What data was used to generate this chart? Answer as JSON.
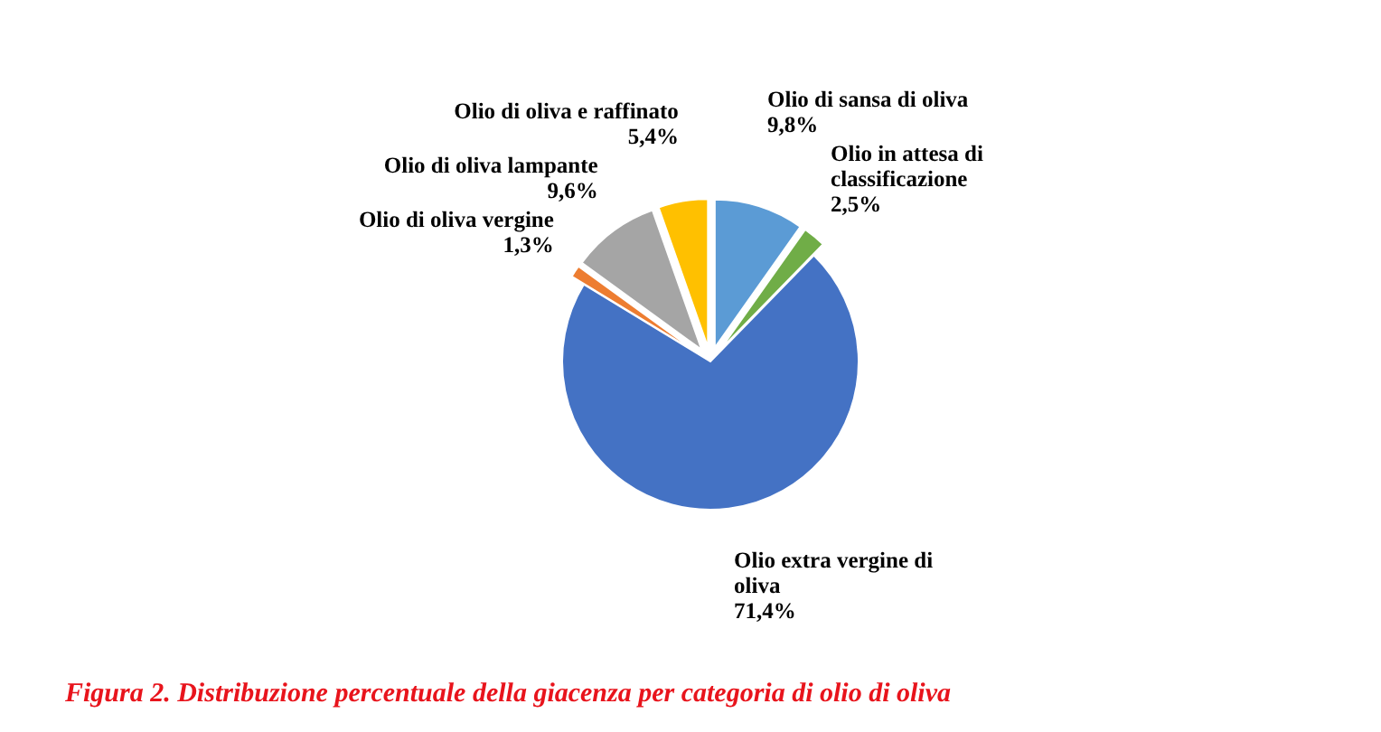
{
  "chart_data": {
    "type": "pie",
    "title": "Figura 2. Distribuzione percentuale della giacenza per categoria di olio di oliva",
    "categories": [
      "Olio di sansa di oliva",
      "Olio in attesa di classificazione",
      "Olio extra vergine di oliva",
      "Olio di oliva vergine",
      "Olio di oliva lampante",
      "Olio di oliva e raffinato"
    ],
    "values": [
      9.8,
      2.5,
      71.4,
      1.3,
      9.6,
      5.4
    ],
    "value_labels": [
      "9,8%",
      "2,5%",
      "71,4%",
      "1,3%",
      "9,6%",
      "5,4%"
    ],
    "colors": [
      "#5b9bd5",
      "#70ad47",
      "#4472c4",
      "#ed7d31",
      "#a5a5a5",
      "#ffc000"
    ]
  }
}
